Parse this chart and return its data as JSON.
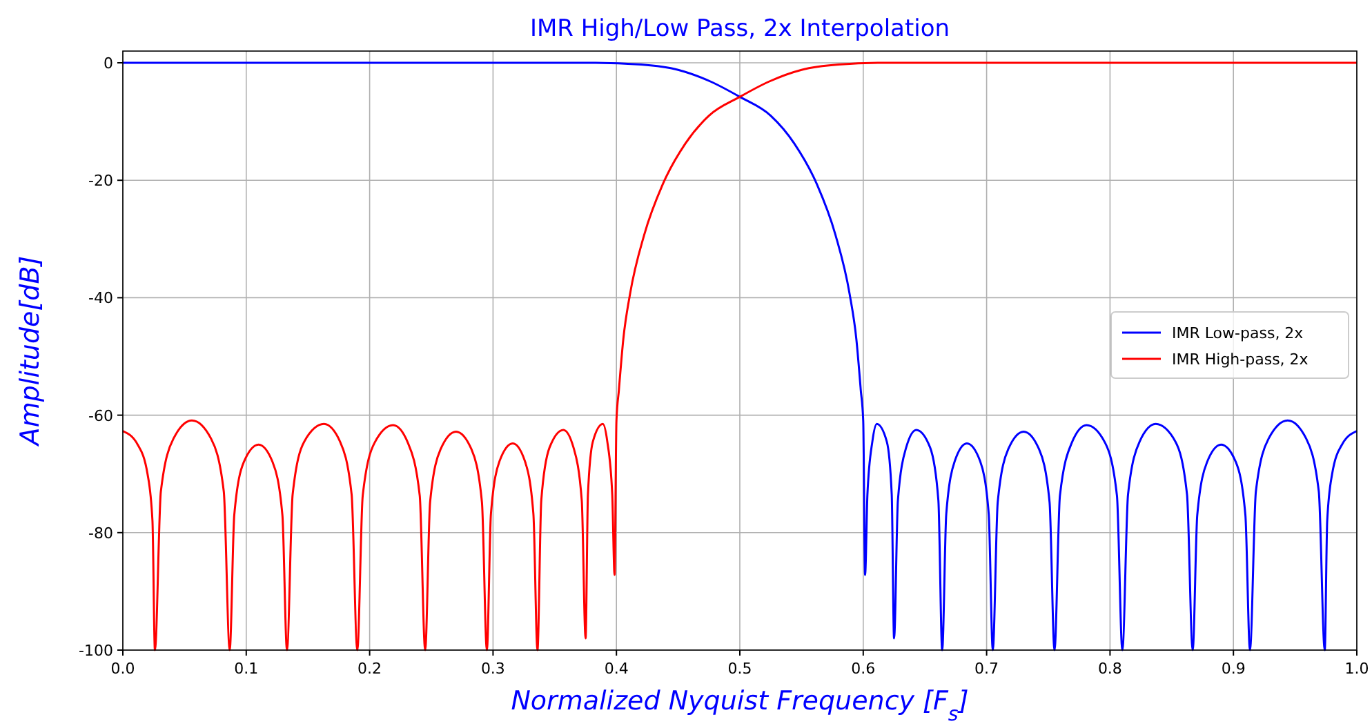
{
  "chart_data": {
    "type": "line",
    "title": "IMR High/Low Pass, 2x Interpolation",
    "xlabel": "Normalized Nyquist Frequency [F$_{s}$]",
    "ylabel": "Amplitude[dB]",
    "xlim": [
      0,
      1
    ],
    "ylim": [
      -100,
      2
    ],
    "xticks": [
      {
        "value": 0,
        "label": "0.0"
      },
      0.1,
      0.2,
      0.3,
      0.4,
      0.5,
      0.6,
      0.7,
      0.8,
      0.9,
      {
        "value": 1,
        "label": "1.0"
      }
    ],
    "yticks": [
      0,
      -20,
      -40,
      -60,
      -80,
      -100
    ],
    "grid": true,
    "legend": "right",
    "marker": "none",
    "line_style": "solid",
    "series": [
      {
        "name": "IMR Low-pass, 2x",
        "color": "#0000ff",
        "x": [
          0,
          0.383,
          0.42,
          0.45,
          0.4764,
          0.5,
          0.525,
          0.544,
          0.5625,
          0.5775,
          0.589,
          0.5944,
          0.598,
          0.6,
          0.6015,
          0.6034,
          0.6074,
          0.611,
          0.6191,
          0.6231,
          0.625,
          0.6281,
          0.6348,
          0.643,
          0.6542,
          0.6609,
          0.664,
          0.6673,
          0.6742,
          0.684,
          0.6947,
          0.7017,
          0.705,
          0.709,
          0.7175,
          0.73,
          0.7425,
          0.751,
          0.755,
          0.7594,
          0.769,
          0.781,
          0.796,
          0.8056,
          0.81,
          0.8146,
          0.824,
          0.837,
          0.853,
          0.8624,
          0.867,
          0.8707,
          0.8786,
          0.89,
          0.902,
          0.9097,
          0.9134,
          0.9182,
          0.9285,
          0.944,
          0.959,
          0.9692,
          0.974,
          0.976,
          0.98,
          0.988,
          1
        ],
        "values": [
          0,
          0,
          -0.3,
          -1.2,
          -3.2,
          -5.8,
          -9,
          -13.7,
          -20.7,
          -29.3,
          -39.4,
          -47,
          -55.7,
          -61,
          -87.2,
          -73.5,
          -64.5,
          -61.5,
          -64.5,
          -73.5,
          -98,
          -74.5,
          -65.5,
          -62.5,
          -65.5,
          -74.5,
          -100,
          -76.8,
          -67.8,
          -64.8,
          -67.8,
          -76.8,
          -100,
          -74.8,
          -65.8,
          -62.8,
          -65.8,
          -74.8,
          -100,
          -73.7,
          -64.7,
          -61.7,
          -64.7,
          -73.7,
          -100,
          -73.5,
          -64.5,
          -61.5,
          -64.5,
          -73.5,
          -100,
          -77,
          -68,
          -65,
          -68,
          -77,
          -100,
          -73,
          -64,
          -60.9,
          -64,
          -73,
          -100,
          -78,
          -70,
          -65,
          -62.7
        ]
      },
      {
        "name": "IMR High-pass, 2x",
        "color": "#ff0000",
        "x": [
          0,
          0.012,
          0.02,
          0.024,
          0.026,
          0.0308,
          0.041,
          0.056,
          0.0715,
          0.0818,
          0.0866,
          0.0903,
          0.098,
          0.11,
          0.1214,
          0.1293,
          0.133,
          0.1376,
          0.147,
          0.163,
          0.176,
          0.1854,
          0.19,
          0.1944,
          0.204,
          0.219,
          0.231,
          0.2406,
          0.245,
          0.249,
          0.2575,
          0.27,
          0.2825,
          0.291,
          0.295,
          0.2983,
          0.3053,
          0.316,
          0.3258,
          0.3327,
          0.336,
          0.3391,
          0.3458,
          0.357,
          0.3652,
          0.3719,
          0.375,
          0.3769,
          0.3809,
          0.389,
          0.3926,
          0.3966,
          0.3985,
          0.4,
          0.402,
          0.4056,
          0.411,
          0.4225,
          0.4375,
          0.456,
          0.475,
          0.5,
          0.5236,
          0.55,
          0.58,
          0.617,
          1
        ],
        "values": [
          -62.7,
          -65,
          -70,
          -78,
          -100,
          -73,
          -64,
          -60.9,
          -64,
          -73,
          -100,
          -77,
          -68,
          -65,
          -68,
          -77,
          -100,
          -73.5,
          -64.5,
          -61.5,
          -64.5,
          -73.5,
          -100,
          -73.7,
          -64.7,
          -61.7,
          -64.7,
          -73.7,
          -100,
          -74.8,
          -65.8,
          -62.8,
          -65.8,
          -74.8,
          -100,
          -76.8,
          -67.8,
          -64.8,
          -67.8,
          -76.8,
          -100,
          -74.5,
          -65.5,
          -62.5,
          -65.5,
          -74.5,
          -98,
          -73.5,
          -64.5,
          -61.5,
          -64.5,
          -73.5,
          -87.2,
          -61,
          -55.7,
          -47,
          -39.4,
          -29.3,
          -20.7,
          -13.7,
          -9,
          -5.8,
          -3.2,
          -1.2,
          -0.3,
          0,
          0
        ]
      }
    ]
  }
}
